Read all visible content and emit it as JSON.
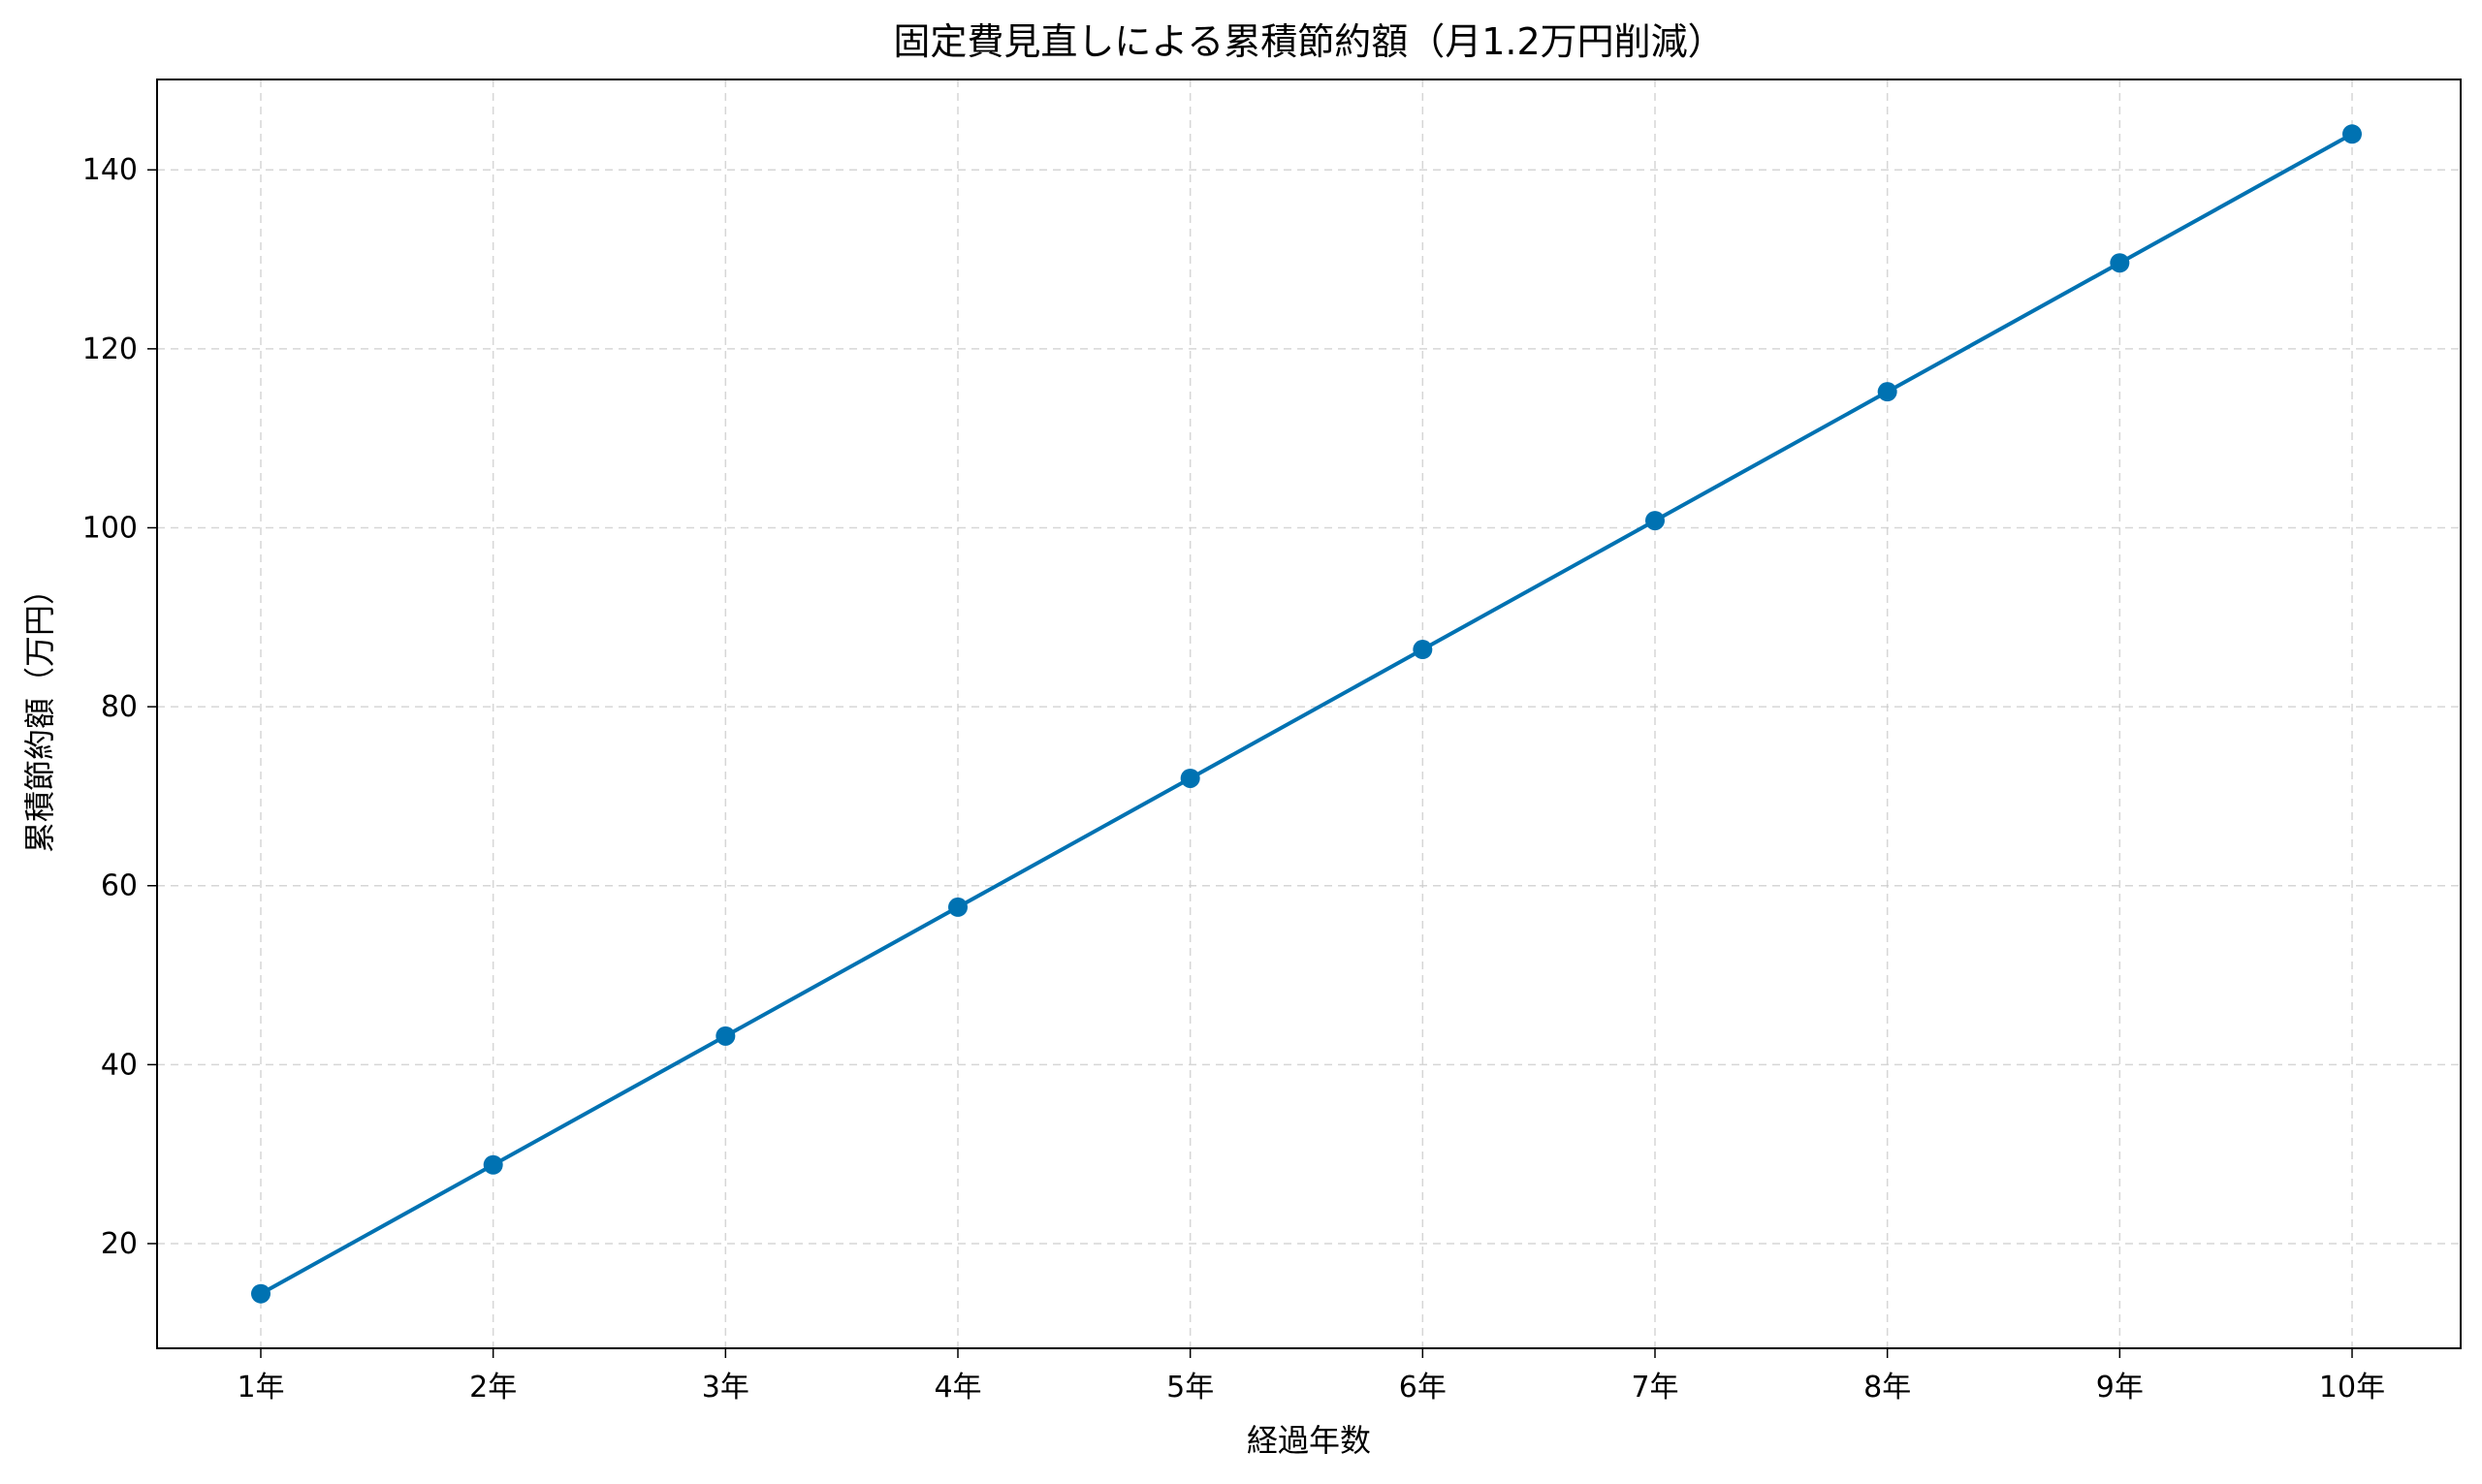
{
  "chart_data": {
    "type": "line",
    "title": "固定費見直しによる累積節約額（月1.2万円削減）",
    "xlabel": "経過年数",
    "ylabel": "累積節約額（万円）",
    "categories": [
      "1年",
      "2年",
      "3年",
      "4年",
      "5年",
      "6年",
      "7年",
      "8年",
      "9年",
      "10年"
    ],
    "series": [
      {
        "values": [
          14.4,
          28.8,
          43.2,
          57.6,
          72.0,
          86.4,
          100.8,
          115.2,
          129.6,
          144.0
        ],
        "color": "#0072b2",
        "marker": "circle"
      }
    ],
    "ylim": [
      8.3,
      150.1
    ],
    "yticks": [
      20,
      40,
      60,
      80,
      100,
      120,
      140
    ],
    "ytick_labels": [
      "20",
      "40",
      "60",
      "80",
      "100",
      "120",
      "140"
    ],
    "grid": true,
    "grid_style": "dashed",
    "legend": "none"
  }
}
